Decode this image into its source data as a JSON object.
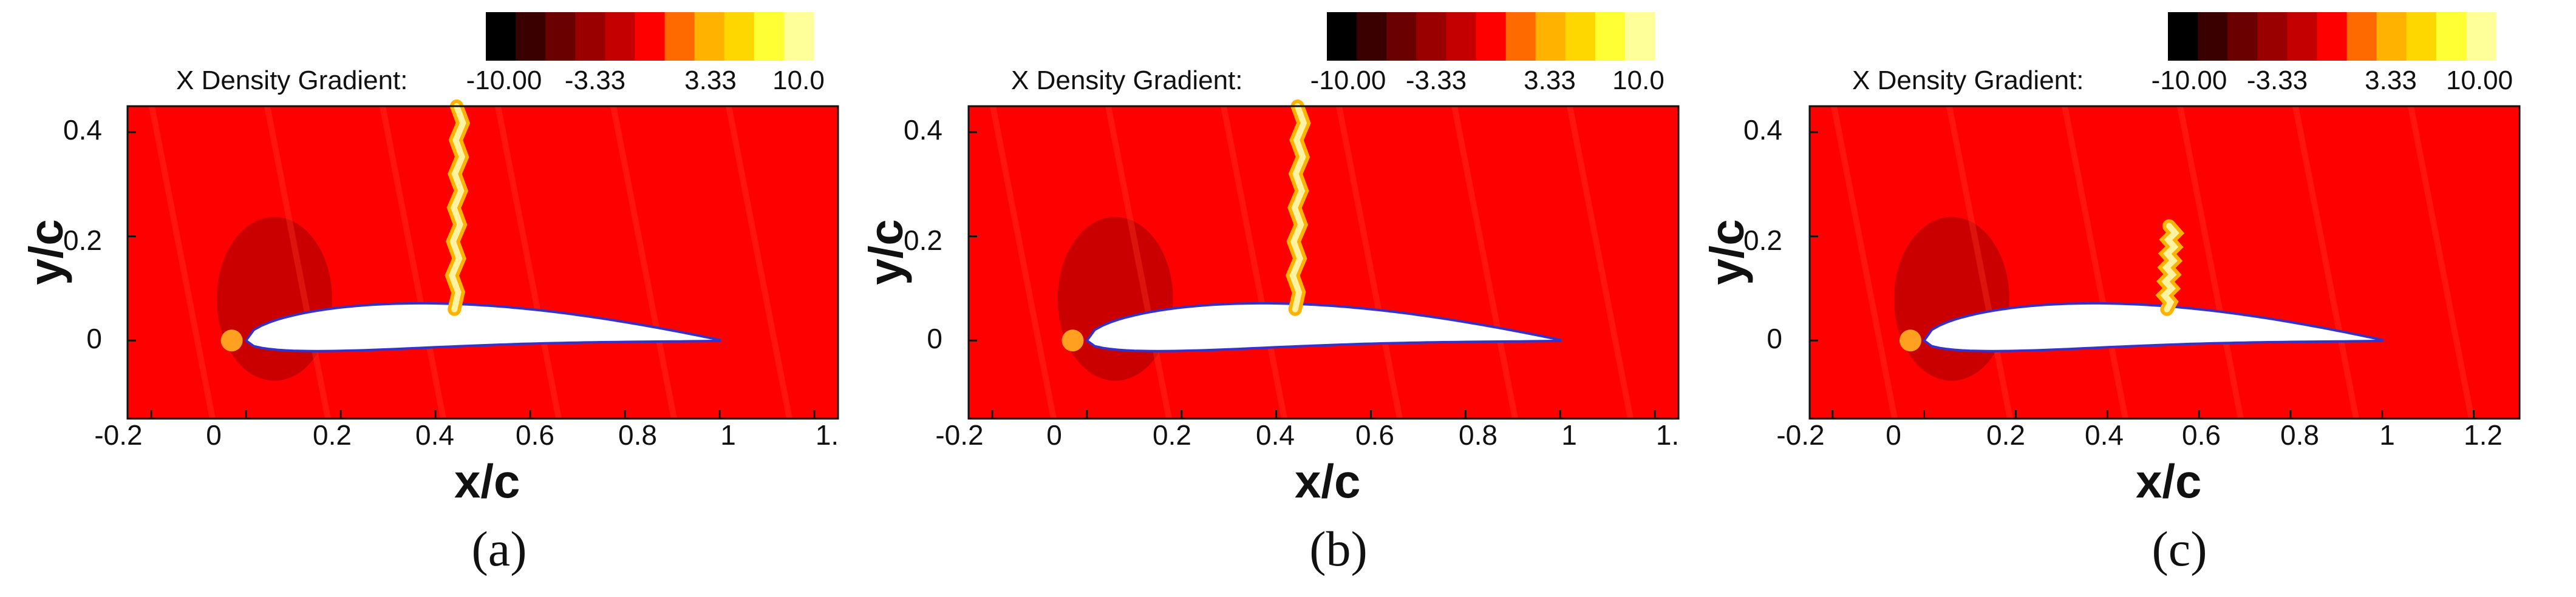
{
  "figure": {
    "colorbar": {
      "colors": [
        "#000000",
        "#3a0000",
        "#6b0000",
        "#9a0000",
        "#c40000",
        "#ff0000",
        "#ff6a00",
        "#ffb300",
        "#ffd700",
        "#ffff33",
        "#ffff99"
      ]
    },
    "field_colors": {
      "background": "#ff0000",
      "airfoil_fill": "#ffffff",
      "airfoil_edge": "#3333cc",
      "shock": "#fff2a0",
      "stagnation": "#ffa020"
    },
    "panels": [
      {
        "id": "a",
        "caption": "(a)",
        "colorbar_label": "X Density Gradient:",
        "colorbar_ticks": [
          "-10.00",
          "-3.33",
          "3.33",
          "10.0"
        ],
        "xlabel": "x/c",
        "ylabel": "y/c",
        "xticks": [
          "-0.2",
          "0",
          "0.2",
          "0.4",
          "0.6",
          "0.8",
          "1",
          "1."
        ],
        "yticks": [
          "0.4",
          "0.2",
          "0"
        ],
        "xlim": [
          -0.25,
          1.25
        ],
        "ylim": [
          -0.15,
          0.45
        ],
        "shock_x": 0.44,
        "shock_top": 0.45
      },
      {
        "id": "b",
        "caption": "(b)",
        "colorbar_label": "X Density Gradient:",
        "colorbar_ticks": [
          "-10.00",
          "-3.33",
          "3.33",
          "10.0"
        ],
        "xlabel": "x/c",
        "ylabel": "y/c",
        "xticks": [
          "-0.2",
          "0",
          "0.2",
          "0.4",
          "0.6",
          "0.8",
          "1",
          "1."
        ],
        "yticks": [
          "0.4",
          "0.2",
          "0"
        ],
        "xlim": [
          -0.25,
          1.25
        ],
        "ylim": [
          -0.15,
          0.45
        ],
        "shock_x": 0.44,
        "shock_top": 0.45
      },
      {
        "id": "c",
        "caption": "(c)",
        "colorbar_label": "X Density Gradient:",
        "colorbar_ticks": [
          "-10.00",
          "-3.33",
          "3.33",
          "10.00"
        ],
        "xlabel": "x/c",
        "ylabel": "y/c",
        "xticks": [
          "-0.2",
          "0",
          "0.2",
          "0.4",
          "0.6",
          "0.8",
          "1",
          "1.2"
        ],
        "yticks": [
          "0.4",
          "0.2",
          "0"
        ],
        "xlim": [
          -0.25,
          1.3
        ],
        "ylim": [
          -0.15,
          0.45
        ],
        "shock_x": 0.53,
        "shock_top": 0.22
      }
    ]
  }
}
